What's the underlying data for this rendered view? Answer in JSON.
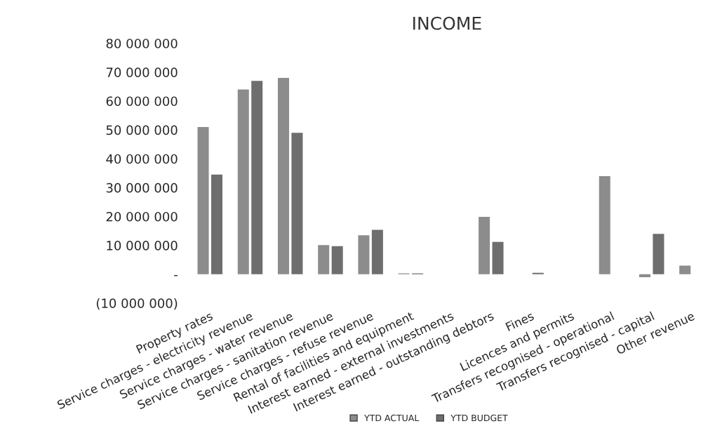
{
  "chart_data": {
    "type": "bar",
    "title": "INCOME",
    "categories": [
      "Property rates",
      "Service charges - electricity revenue",
      "Service charges - water revenue",
      "Service charges - sanitation revenue",
      "Service charges - refuse revenue",
      "Rental of facilities and equipment",
      "Interest earned - external investments",
      "Interest earned - outstanding debtors",
      "Fines",
      "Licences and permits",
      "Transfers recognised - operational",
      "Transfers recognised - capital",
      "Other revenue"
    ],
    "series": [
      {
        "name": "YTD ACTUAL",
        "color": "#8c8c8c",
        "values": [
          51000000,
          64000000,
          68000000,
          10100000,
          13500000,
          300000,
          0,
          19900000,
          0,
          0,
          34000000,
          -1000000,
          3000000
        ]
      },
      {
        "name": "YTD BUDGET",
        "color": "#6e6e6e",
        "values": [
          34500000,
          67000000,
          49000000,
          9700000,
          15400000,
          300000,
          0,
          11200000,
          500000,
          0,
          0,
          14000000,
          null
        ]
      }
    ],
    "ylim": [
      -10000000,
      80000000
    ],
    "yticks": [
      {
        "value": -10000000,
        "label": "(10 000 000)"
      },
      {
        "value": 0,
        "label": "-"
      },
      {
        "value": 10000000,
        "label": "10 000 000"
      },
      {
        "value": 20000000,
        "label": "20 000 000"
      },
      {
        "value": 30000000,
        "label": "30 000 000"
      },
      {
        "value": 40000000,
        "label": "40 000 000"
      },
      {
        "value": 50000000,
        "label": "50 000 000"
      },
      {
        "value": 60000000,
        "label": "60 000 000"
      },
      {
        "value": 70000000,
        "label": "70 000 000"
      },
      {
        "value": 80000000,
        "label": "80 000 000"
      }
    ],
    "grid": false,
    "legend": "bottom"
  }
}
